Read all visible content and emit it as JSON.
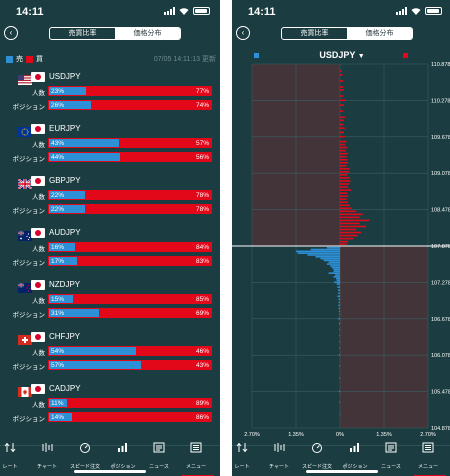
{
  "screens": [
    {
      "status_time": "14:11",
      "tabs": {
        "active": "売買比率",
        "inactive": "価格分布"
      }
    },
    {
      "status_time": "14:11",
      "tabs": {
        "active": "売買比率",
        "inactive": "価格分布"
      }
    }
  ],
  "ratio": {
    "legend": {
      "sell": "売",
      "buy": "買"
    },
    "timestamp": "07/05 14:11:13 更新",
    "row_labels": {
      "people": "人数",
      "position": "ポジション"
    },
    "colors": {
      "sell": "#2d8fd5",
      "buy": "#e3071a"
    },
    "pairs": [
      {
        "name": "USDJPY",
        "flag": "us-flag-icon",
        "people": {
          "sell": 23,
          "buy": 77,
          "sell_label": "23%",
          "buy_label": "77%"
        },
        "position": {
          "sell": 26,
          "buy": 74,
          "sell_label": "26%",
          "buy_label": "74%"
        }
      },
      {
        "name": "EURJPY",
        "flag": "eu-flag-icon",
        "people": {
          "sell": 43,
          "buy": 57,
          "sell_label": "43%",
          "buy_label": "57%"
        },
        "position": {
          "sell": 44,
          "buy": 56,
          "sell_label": "44%",
          "buy_label": "56%"
        }
      },
      {
        "name": "GBPJPY",
        "flag": "gb-flag-icon",
        "people": {
          "sell": 22,
          "buy": 78,
          "sell_label": "22%",
          "buy_label": "78%"
        },
        "position": {
          "sell": 22,
          "buy": 78,
          "sell_label": "22%",
          "buy_label": "78%"
        }
      },
      {
        "name": "AUDJPY",
        "flag": "au-flag-icon",
        "people": {
          "sell": 16,
          "buy": 84,
          "sell_label": "16%",
          "buy_label": "84%"
        },
        "position": {
          "sell": 17,
          "buy": 83,
          "sell_label": "17%",
          "buy_label": "83%"
        }
      },
      {
        "name": "NZDJPY",
        "flag": "nz-flag-icon",
        "people": {
          "sell": 15,
          "buy": 85,
          "sell_label": "15%",
          "buy_label": "85%"
        },
        "position": {
          "sell": 31,
          "buy": 69,
          "sell_label": "31%",
          "buy_label": "69%"
        }
      },
      {
        "name": "CHFJPY",
        "flag": "ch-flag-icon",
        "people": {
          "sell": 54,
          "buy": 46,
          "sell_label": "54%",
          "buy_label": "46%"
        },
        "position": {
          "sell": 57,
          "buy": 43,
          "sell_label": "57%",
          "buy_label": "43%"
        }
      },
      {
        "name": "CADJPY",
        "flag": "ca-flag-icon",
        "people": {
          "sell": 11,
          "buy": 89,
          "sell_label": "11%",
          "buy_label": "89%"
        },
        "position": {
          "sell": 14,
          "buy": 86,
          "sell_label": "14%",
          "buy_label": "86%"
        }
      }
    ]
  },
  "tabbar": {
    "items": [
      {
        "label": "レート",
        "icon": "rate-arrows-icon"
      },
      {
        "label": "チャート",
        "icon": "chart-icon"
      },
      {
        "label": "スピード注文",
        "icon": "speed-order-icon"
      },
      {
        "label": "ポジション",
        "icon": "position-icon"
      },
      {
        "label": "ニュース",
        "icon": "news-icon"
      },
      {
        "label": "メニュー",
        "icon": "menu-icon"
      }
    ],
    "active_index": 5
  },
  "distribution": {
    "symbol": "USDJPY",
    "dropdown_glyph": "▼",
    "legend": {
      "sell": "売",
      "buy": "買"
    }
  },
  "chart_data": {
    "type": "bar",
    "title": "USDJPY",
    "orientation": "horizontal",
    "y_ticks": [
      "110.878",
      "110.278",
      "109.678",
      "109.078",
      "108.478",
      "107.878",
      "107.278",
      "106.678",
      "106.078",
      "105.478",
      "104.878"
    ],
    "ylim": [
      104.878,
      110.878
    ],
    "x_ticks": [
      "2.70%",
      "1.35%",
      "0%",
      "1.35%",
      "2.70%"
    ],
    "xlim": [
      -2.7,
      2.7
    ],
    "current_price": 107.878,
    "series": [
      {
        "name": "売",
        "color": "#2d8fd5",
        "points": [
          [
            107.85,
            0.4
          ],
          [
            107.82,
            0.9
          ],
          [
            107.79,
            1.35
          ],
          [
            107.76,
            1.3
          ],
          [
            107.73,
            1.0
          ],
          [
            107.7,
            0.75
          ],
          [
            107.67,
            0.6
          ],
          [
            107.64,
            0.5
          ],
          [
            107.61,
            0.35
          ],
          [
            107.58,
            0.4
          ],
          [
            107.55,
            0.3
          ],
          [
            107.52,
            0.25
          ],
          [
            107.49,
            0.2
          ],
          [
            107.46,
            0.2
          ],
          [
            107.43,
            0.35
          ],
          [
            107.4,
            0.15
          ],
          [
            107.37,
            0.2
          ],
          [
            107.34,
            0.12
          ],
          [
            107.31,
            0.1
          ],
          [
            107.28,
            0.18
          ],
          [
            107.25,
            0.1
          ],
          [
            107.2,
            0.08
          ],
          [
            107.15,
            0.06
          ],
          [
            107.1,
            0.05
          ],
          [
            107.05,
            0.08
          ],
          [
            107.0,
            0.05
          ],
          [
            106.95,
            0.04
          ],
          [
            106.9,
            0.05
          ],
          [
            106.85,
            0.04
          ],
          [
            106.8,
            0.03
          ],
          [
            106.75,
            0.02
          ],
          [
            106.68,
            0.05
          ],
          [
            106.6,
            0.03
          ],
          [
            106.5,
            0.02
          ],
          [
            106.4,
            0.02
          ],
          [
            106.3,
            0.02
          ],
          [
            106.2,
            0.02
          ],
          [
            106.08,
            0.03
          ],
          [
            105.9,
            0.02
          ],
          [
            105.7,
            0.02
          ],
          [
            105.48,
            0.03
          ],
          [
            105.3,
            0.02
          ],
          [
            105.1,
            0.01
          ]
        ]
      },
      {
        "name": "買",
        "color": "#e3071a",
        "points": [
          [
            110.76,
            0.05
          ],
          [
            110.7,
            0.08
          ],
          [
            110.6,
            0.1
          ],
          [
            110.5,
            0.1
          ],
          [
            110.45,
            0.12
          ],
          [
            110.35,
            0.1
          ],
          [
            110.28,
            0.18
          ],
          [
            110.2,
            0.12
          ],
          [
            110.1,
            0.1
          ],
          [
            110.0,
            0.15
          ],
          [
            109.95,
            0.12
          ],
          [
            109.88,
            0.1
          ],
          [
            109.82,
            0.15
          ],
          [
            109.75,
            0.12
          ],
          [
            109.68,
            0.15
          ],
          [
            109.6,
            0.2
          ],
          [
            109.55,
            0.15
          ],
          [
            109.5,
            0.22
          ],
          [
            109.45,
            0.18
          ],
          [
            109.4,
            0.25
          ],
          [
            109.35,
            0.2
          ],
          [
            109.3,
            0.22
          ],
          [
            109.25,
            0.25
          ],
          [
            109.2,
            0.2
          ],
          [
            109.15,
            0.3
          ],
          [
            109.1,
            0.28
          ],
          [
            109.05,
            0.22
          ],
          [
            109.0,
            0.3
          ],
          [
            108.95,
            0.32
          ],
          [
            108.9,
            0.28
          ],
          [
            108.85,
            0.25
          ],
          [
            108.8,
            0.35
          ],
          [
            108.75,
            0.22
          ],
          [
            108.7,
            0.25
          ],
          [
            108.65,
            0.2
          ],
          [
            108.6,
            0.25
          ],
          [
            108.55,
            0.3
          ],
          [
            108.5,
            0.35
          ],
          [
            108.45,
            0.5
          ],
          [
            108.4,
            0.7
          ],
          [
            108.35,
            0.6
          ],
          [
            108.3,
            0.9
          ],
          [
            108.25,
            0.6
          ],
          [
            108.2,
            0.8
          ],
          [
            108.15,
            0.5
          ],
          [
            108.1,
            0.65
          ],
          [
            108.05,
            0.55
          ],
          [
            108.0,
            0.4
          ],
          [
            107.95,
            0.25
          ],
          [
            107.91,
            0.2
          ]
        ]
      }
    ],
    "grid": true,
    "legend": "top"
  }
}
